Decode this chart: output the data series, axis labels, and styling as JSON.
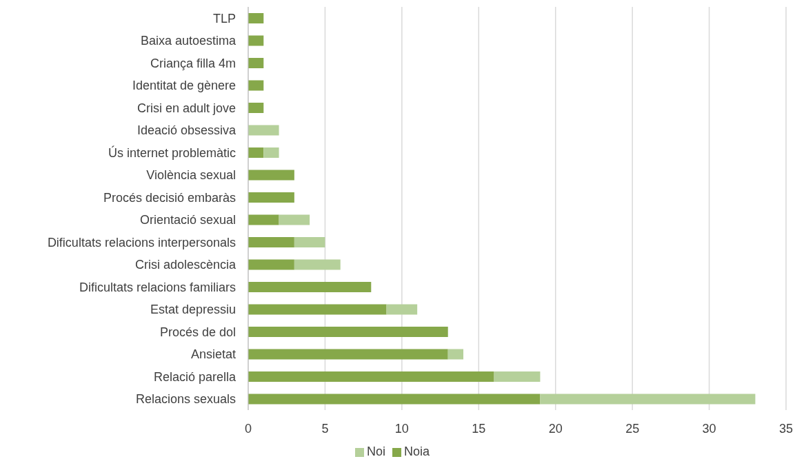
{
  "chart_data": {
    "type": "bar",
    "orientation": "horizontal",
    "stacked": true,
    "categories": [
      "TLP",
      "Baixa autoestima",
      "Criança filla 4m",
      "Identitat de gènere",
      "Crisi en adult jove",
      "Ideació obsessiva",
      "Ús internet problemàtic",
      "Violència sexual",
      "Procés decisió embaràs",
      "Orientació sexual",
      "Dificultats relacions interpersonals",
      "Crisi adolescència",
      "Dificultats relacions familiars",
      "Estat depressiu",
      "Procés de dol",
      "Ansietat",
      "Relació parella",
      "Relacions sexuals"
    ],
    "series": [
      {
        "name": "Noia",
        "color": "#86a84a",
        "values": [
          1,
          1,
          1,
          1,
          1,
          0,
          1,
          3,
          3,
          2,
          3,
          3,
          8,
          9,
          13,
          13,
          16,
          19
        ]
      },
      {
        "name": "Noi",
        "color": "#b5d09a",
        "values": [
          0,
          0,
          0,
          0,
          0,
          2,
          1,
          0,
          0,
          2,
          2,
          3,
          0,
          2,
          0,
          1,
          3,
          14
        ]
      }
    ],
    "xlim": [
      0,
      35
    ],
    "xticks": [
      0,
      5,
      10,
      15,
      20,
      25,
      30,
      35
    ],
    "grid": "x",
    "legend": "bottom"
  }
}
